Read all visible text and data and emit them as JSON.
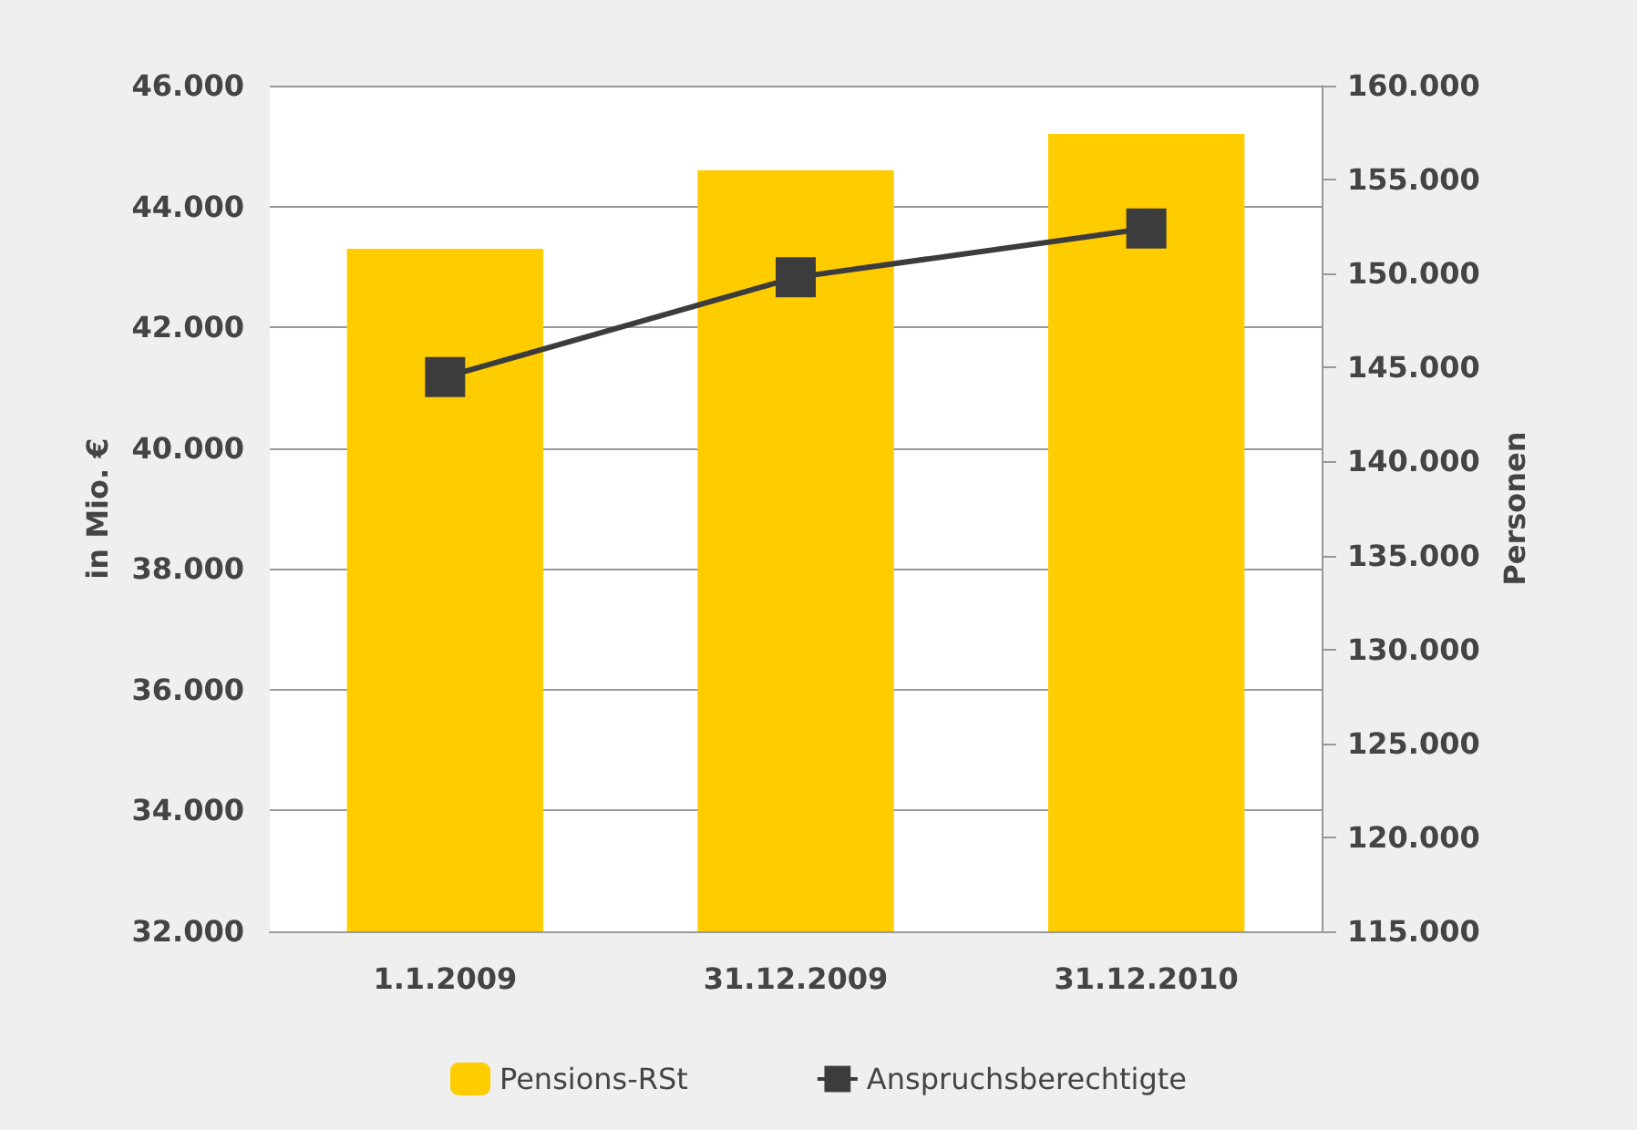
{
  "chart_data": {
    "type": "bar",
    "categories": [
      "1.1.2009",
      "31.12.2009",
      "31.12.2010"
    ],
    "series": [
      {
        "name": "Pensions-RSt",
        "color": "#ffcc00",
        "values": [
          43300,
          44600,
          45200
        ]
      },
      {
        "name": "Anspruchsberechtigte",
        "type": "line",
        "axis": "y2",
        "color": "#3c3c3c",
        "values": [
          144500,
          149800,
          152400
        ]
      }
    ],
    "ylabel": "in Mio. €",
    "y2label": "Personen",
    "ylim": [
      32000,
      46000
    ],
    "yticks": [
      {
        "value": 32000,
        "label": "32.000"
      },
      {
        "value": 34000,
        "label": "34.000"
      },
      {
        "value": 36000,
        "label": "36.000"
      },
      {
        "value": 38000,
        "label": "38.000"
      },
      {
        "value": 40000,
        "label": "40.000"
      },
      {
        "value": 42000,
        "label": "42.000"
      },
      {
        "value": 44000,
        "label": "44.000"
      },
      {
        "value": 46000,
        "label": "46.000"
      }
    ],
    "y2lim": [
      115000,
      160000
    ],
    "y2ticks": [
      {
        "value": 115000,
        "label": "115.000"
      },
      {
        "value": 120000,
        "label": "120.000"
      },
      {
        "value": 125000,
        "label": "125.000"
      },
      {
        "value": 130000,
        "label": "130.000"
      },
      {
        "value": 135000,
        "label": "135.000"
      },
      {
        "value": 140000,
        "label": "140.000"
      },
      {
        "value": 145000,
        "label": "145.000"
      },
      {
        "value": 150000,
        "label": "150.000"
      },
      {
        "value": 155000,
        "label": "155.000"
      },
      {
        "value": 160000,
        "label": "160.000"
      }
    ],
    "grid": "y",
    "legend": "bottom",
    "marker": "square",
    "line_style": "solid"
  }
}
